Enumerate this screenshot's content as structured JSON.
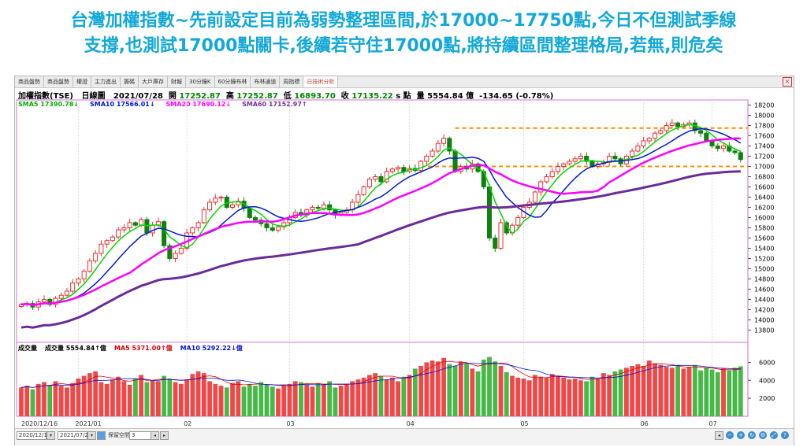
{
  "headline": {
    "line1": "台灣加權指數~先前設定目前為弱勢整理區間,於17000~17750點,今日不但測試季線",
    "line2": "支撐,也測試17000點關卡,後續若守住17000點,將持續區間整理格局,若無,則危矣"
  },
  "tabs": [
    "商品盤勢",
    "商品盤勢",
    "權證",
    "主力進出",
    "籌碼",
    "大戶庫存",
    "財報",
    "30分鐘K",
    "60分鐘布林",
    "布林通道",
    "周指標",
    "日技術分析"
  ],
  "active_tab": "日技術分析",
  "info": {
    "name": "加權指數(TSE)",
    "period": "日線圖",
    "date": "2021/07/28",
    "open_label": "開",
    "open": "17252.87",
    "high_label": "高",
    "high": "17252.87",
    "low_label": "低",
    "low": "16893.70",
    "close_label": "收",
    "close": "17135.22",
    "unit_s": "s 點",
    "vol_label": "量",
    "volume": "5554.84 億",
    "change": "-134.65 (-0.78%)"
  },
  "ma_legend": [
    {
      "text": "SMA5 17390.78↓",
      "color": "#00b000"
    },
    {
      "text": "SMA10 17566.01↓",
      "color": "#0018d8"
    },
    {
      "text": "SMA20 17690.12↓",
      "color": "#ff00ff"
    },
    {
      "text": "SMA60 17152.97↑",
      "color": "#7030a0"
    }
  ],
  "vol_legend": [
    {
      "text": "成交量",
      "color": "#000000"
    },
    {
      "text": "成交量 5554.84↑億",
      "color": "#000000"
    },
    {
      "text": "MA5 5371.00↑億",
      "color": "#e00000"
    },
    {
      "text": "MA10 5292.22↓億",
      "color": "#0018d8"
    }
  ],
  "footer": {
    "start_date": "2020/12/16",
    "end_date": "2021/07/28",
    "keep_space_label": "保留空間",
    "keep_space_value": "3"
  },
  "colors": {
    "up": "#e83030",
    "down": "#108010",
    "sma5": "#00d800",
    "sma10": "#0018d8",
    "sma20": "#ff00ff",
    "sma60": "#6a2c9a",
    "level": "#ff8c00",
    "vol_up": "#f04848",
    "vol_down": "#48b848"
  },
  "chart_data": {
    "type": "candlestick",
    "title": "加權指數(TSE) 日線圖",
    "y_ticks": [
      13800,
      14000,
      14200,
      14400,
      14600,
      14800,
      15000,
      15200,
      15400,
      15600,
      15800,
      16000,
      16200,
      16400,
      16600,
      16800,
      17000,
      17200,
      17400,
      17600,
      17800,
      18000,
      18200
    ],
    "ylim": [
      13560,
      18300
    ],
    "x_tick_labels": [
      "2020/12/16",
      "2021/01",
      "02",
      "03",
      "04",
      "05",
      "06",
      "07"
    ],
    "horizontal_levels": [
      17000,
      17750
    ],
    "close": [
      14300,
      14320,
      14250,
      14350,
      14400,
      14300,
      14420,
      14480,
      14560,
      14720,
      14800,
      14950,
      15150,
      15300,
      15480,
      15550,
      15620,
      15760,
      15800,
      15900,
      15850,
      15960,
      15700,
      15850,
      15920,
      15450,
      15200,
      15300,
      15400,
      15700,
      15800,
      15900,
      16150,
      16300,
      16380,
      16400,
      16200,
      16250,
      16320,
      16180,
      16000,
      15950,
      15880,
      15800,
      15750,
      15820,
      15900,
      16000,
      16100,
      16050,
      16150,
      16200,
      16180,
      16250,
      16150,
      16050,
      16100,
      16150,
      16300,
      16450,
      16600,
      16750,
      16800,
      16700,
      16900,
      16950,
      16980,
      16900,
      16960,
      16920,
      17100,
      17200,
      17300,
      17450,
      17550,
      17300,
      16900,
      17000,
      16950,
      17050,
      16900,
      16600,
      15600,
      15400,
      15900,
      15700,
      15850,
      16000,
      16200,
      16300,
      16500,
      16700,
      16800,
      16900,
      17000,
      17050,
      17100,
      17150,
      17200,
      17100,
      17000,
      17050,
      17080,
      17200,
      17150,
      17050,
      17200,
      17300,
      17400,
      17500,
      17550,
      17650,
      17700,
      17800,
      17850,
      17780,
      17820,
      17850,
      17700,
      17650,
      17500,
      17400,
      17350,
      17400,
      17300,
      17270,
      17135
    ],
    "sma5_last": 17390.78,
    "sma10_last": 17566.01,
    "sma20_last": 17690.12,
    "sma60_last": 17152.97,
    "volume_ticks": [
      2000,
      4000,
      6000
    ],
    "volume_ylim": [
      0,
      7000
    ],
    "volume": [
      3200,
      3400,
      3000,
      3600,
      3800,
      3500,
      3900,
      3400,
      3200,
      3700,
      4200,
      4500,
      4800,
      5000,
      3800,
      3600,
      4100,
      4400,
      3900,
      3500,
      4200,
      4600,
      3800,
      4000,
      3900,
      4500,
      4200,
      3800,
      3600,
      4100,
      4700,
      5000,
      4800,
      3900,
      3600,
      3400,
      3200,
      3700,
      3900,
      3300,
      3600,
      3400,
      3800,
      3500,
      3300,
      3100,
      3400,
      3600,
      3900,
      3800,
      3500,
      3300,
      3700,
      3600,
      3900,
      3200,
      3400,
      3600,
      3900,
      4100,
      4300,
      4600,
      4800,
      4500,
      4100,
      4300,
      3900,
      4400,
      4600,
      5300,
      5600,
      6000,
      6200,
      6100,
      6500,
      5800,
      5600,
      6100,
      5900,
      5300,
      5000,
      6300,
      6600,
      6100,
      5600,
      4900,
      4500,
      4300,
      4200,
      4000,
      4600,
      4400,
      4300,
      4700,
      4500,
      4300,
      4100,
      4200,
      4000,
      3900,
      4400,
      4200,
      4800,
      4600,
      5000,
      5200,
      5400,
      5600,
      5800,
      5600,
      6200,
      5900,
      5700,
      5500,
      5400,
      5600,
      5300,
      5500,
      5700,
      5100,
      5400,
      5200,
      4900,
      5300,
      5100,
      5400,
      5555
    ]
  }
}
